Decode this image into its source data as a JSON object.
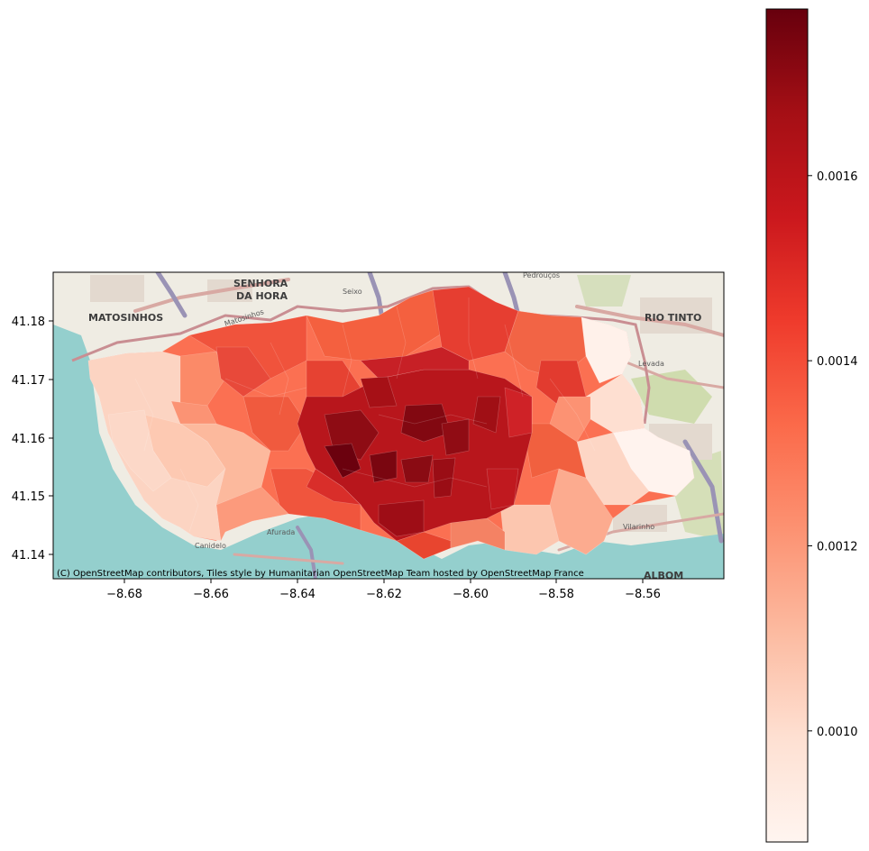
{
  "map": {
    "x_ticks": [
      "−8.68",
      "−8.66",
      "−8.64",
      "−8.62",
      "−8.60",
      "−8.58",
      "−8.56"
    ],
    "y_ticks": [
      "41.18",
      "41.17",
      "41.16",
      "41.15",
      "41.14"
    ],
    "attribution": "(C) OpenStreetMap contributors, Tiles style by Humanitarian OpenStreetMap Team hosted by OpenStreetMap France",
    "places": {
      "matosinhos": "MATOSINHOS",
      "senhora": "SENHORA",
      "da_hora": "DA HORA",
      "rio_tinto": "RIO TINTO",
      "albom": "ALBOM",
      "matosinhos_road": "Matosinhos",
      "seixo": "Seixo",
      "pedrouços": "Pedrouços",
      "levada": "Levada",
      "canidelo": "Canidelo",
      "afurada": "Afurada",
      "vilarinho": "Vilarinho"
    },
    "xlim": [
      -8.698,
      -8.545
    ],
    "ylim": [
      41.1365,
      41.1885
    ]
  },
  "colorbar": {
    "colormap": "Reds",
    "vmin": 0.00088,
    "vmax": 0.00178,
    "ticks": [
      {
        "value": 0.001,
        "label": "0.0010"
      },
      {
        "value": 0.0012,
        "label": "0.0012"
      },
      {
        "value": 0.0014,
        "label": "0.0014"
      },
      {
        "value": 0.0016,
        "label": "0.0016"
      }
    ]
  },
  "colors": {
    "water": "#94cfcd",
    "land": "#efece3",
    "road_major": "#9a93b5",
    "road_secondary": "#d8a9a3",
    "border": "#c98e92",
    "green": "#c8d9a8"
  }
}
